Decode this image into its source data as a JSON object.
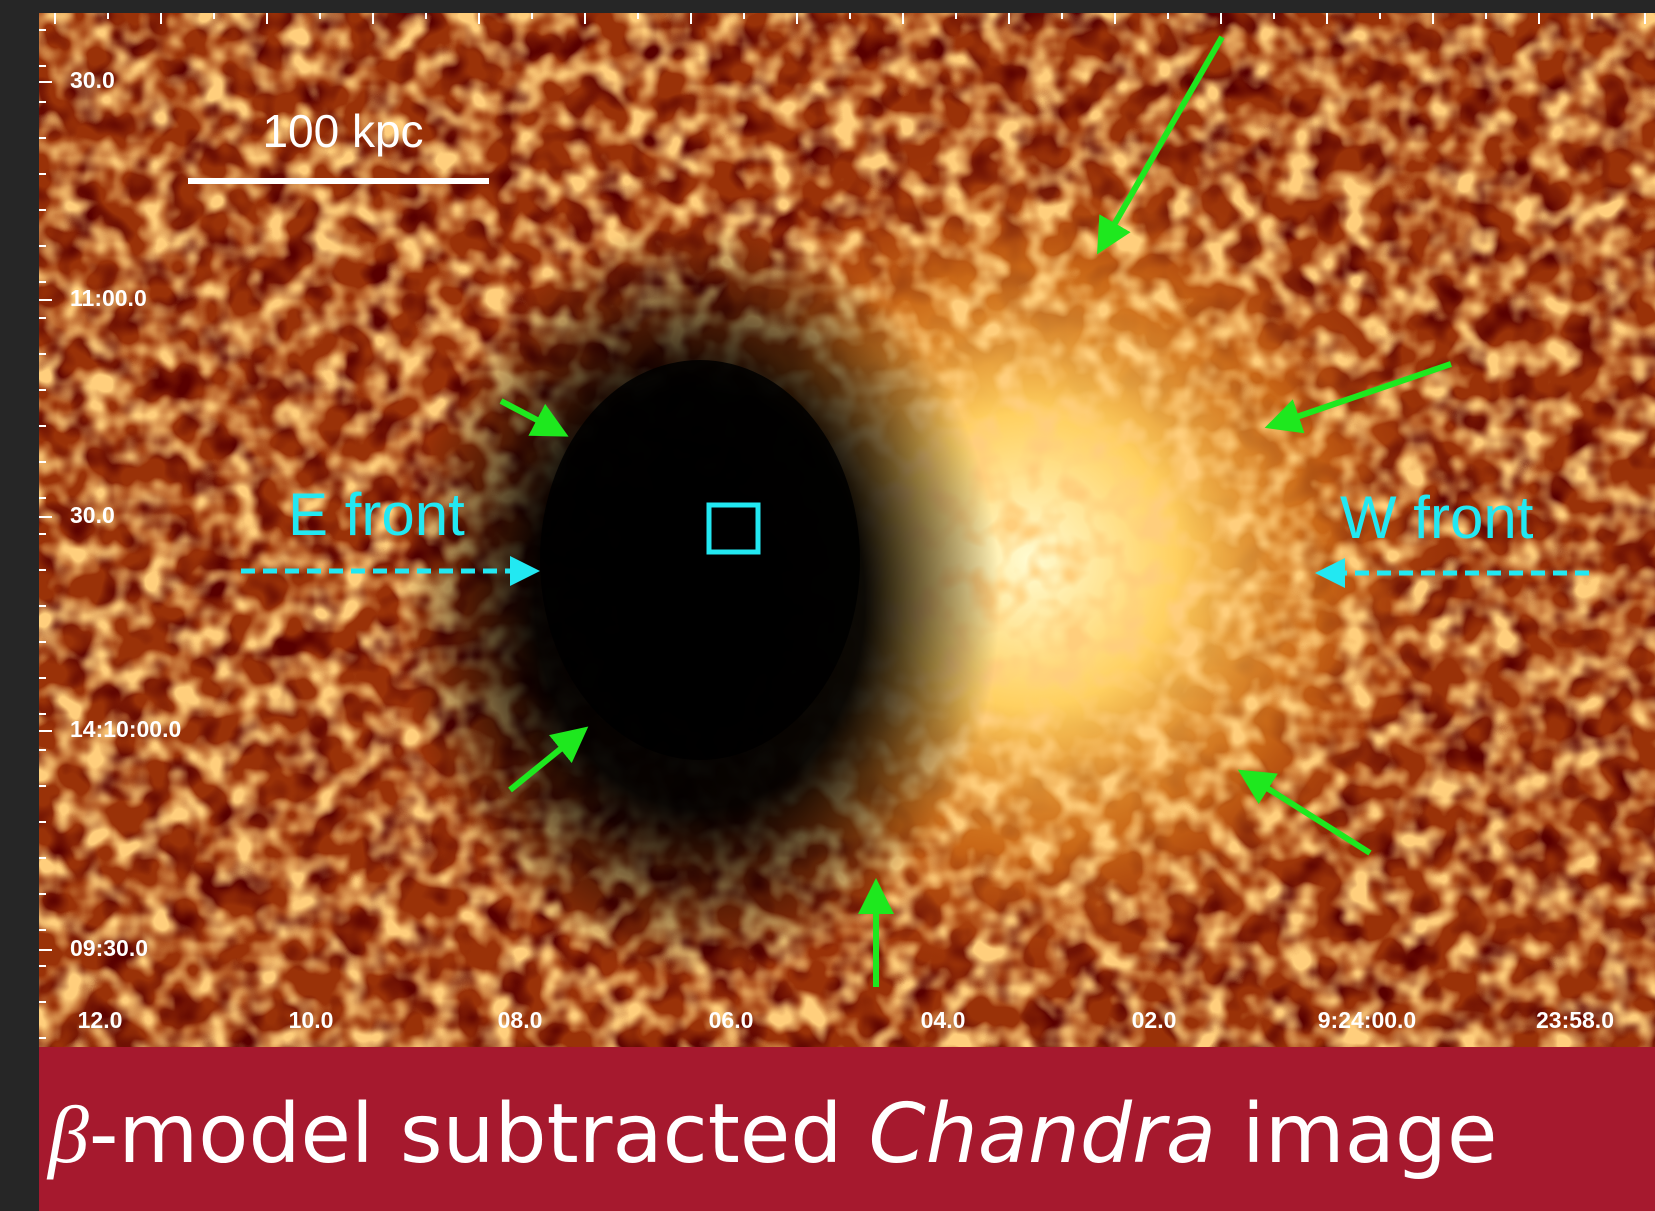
{
  "image": {
    "scale_bar": "100 kpc",
    "labels": [
      "E front",
      "W front"
    ],
    "y_axis_labels": [
      "30.0",
      "11:00.0",
      "30.0",
      "14:10:00.0",
      "09:30.0"
    ],
    "x_axis_labels": [
      "12.0",
      "10.0",
      "08.0",
      "06.0",
      "04.0",
      "02.0",
      "9:24:00.0",
      "23:58.0"
    ]
  },
  "caption": {
    "symbol": "β",
    "text": "-model subtracted ",
    "italic": "Chandra",
    "text2": " image"
  }
}
